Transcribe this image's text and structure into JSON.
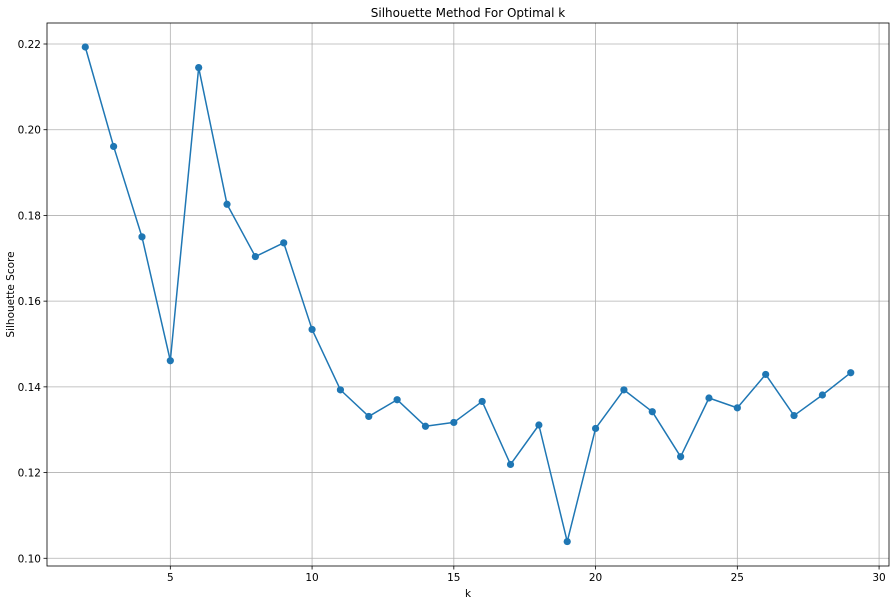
{
  "chart_data": {
    "type": "line",
    "title": "Silhouette Method For Optimal k",
    "xlabel": "k",
    "ylabel": "Silhouette Score",
    "xlim": [
      0.65,
      30.35
    ],
    "ylim": [
      0.0982,
      0.2249
    ],
    "xticks": [
      5,
      10,
      15,
      20,
      25,
      30
    ],
    "yticks": [
      0.1,
      0.12,
      0.14,
      0.16,
      0.18,
      0.2,
      0.22
    ],
    "ytick_labels": [
      "0.10",
      "0.12",
      "0.14",
      "0.16",
      "0.18",
      "0.20",
      "0.22"
    ],
    "grid": true,
    "marker": "circle",
    "line_color": "#1f77b4",
    "series": [
      {
        "x": [
          2,
          3,
          4,
          5,
          6,
          7,
          8,
          9,
          10,
          11,
          12,
          13,
          14,
          15,
          16,
          17,
          18,
          19,
          20,
          21,
          22,
          23,
          24,
          25,
          26,
          27,
          28,
          29
        ],
        "values": [
          0.2193,
          0.1961,
          0.175,
          0.1461,
          0.2145,
          0.1826,
          0.1704,
          0.1736,
          0.1534,
          0.1393,
          0.1331,
          0.137,
          0.1308,
          0.1317,
          0.1366,
          0.1219,
          0.1311,
          0.1039,
          0.1303,
          0.1393,
          0.1342,
          0.1237,
          0.1374,
          0.1351,
          0.1429,
          0.1333,
          0.1381,
          0.1433
        ]
      }
    ]
  }
}
